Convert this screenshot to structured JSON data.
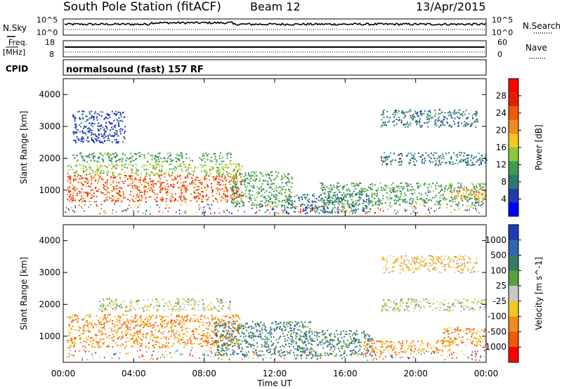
{
  "header": {
    "station": "South Pole Station (fitACF)",
    "beam": "Beam 12",
    "date": "13/Apr/2015"
  },
  "top_panels": {
    "nsky": {
      "label": "N.Sky",
      "tick_top": "10^5",
      "tick_bottom": "10^0"
    },
    "nsearch": {
      "label": "N.Search",
      "tick_top": "10^5",
      "tick_bottom": "10^0"
    },
    "freq": {
      "label_top": "Freq.",
      "label_bottom": "[MHz]",
      "tick_top": "18",
      "tick_bottom": "8"
    },
    "nave": {
      "label": "Nave",
      "tick_top": "60",
      "tick_bottom": "0"
    },
    "cpid": {
      "label": "CPID",
      "value": "normalsound (fast) 157 RF"
    }
  },
  "colors": {
    "power": [
      "#0000ff",
      "#1e3ca8",
      "#2a7a6e",
      "#3c9a50",
      "#8ac83c",
      "#f0c81e",
      "#f08c1e",
      "#f05a0a",
      "#e61e00",
      "#ff0000"
    ],
    "velocity": [
      "#1e3cb4",
      "#3264b4",
      "#3a7a64",
      "#5aa03c",
      "#c8c8c8",
      "#f0c81e",
      "#f08c1e",
      "#f05a0a",
      "#ff0000"
    ]
  },
  "chart_data": [
    {
      "type": "heatmap",
      "name": "power",
      "xlabel": "Time UT",
      "ylabel": "Slant Range [km]",
      "xlim": [
        "00:00",
        "00:00"
      ],
      "ylim": [
        180,
        4500
      ],
      "x_ticks": [
        "00:00",
        "04:00",
        "08:00",
        "12:00",
        "16:00",
        "20:00",
        "00:00"
      ],
      "y_ticks": [
        1000,
        2000,
        3000,
        4000
      ],
      "colorbar": {
        "label": "Power [dB]",
        "ticks": [
          4,
          8,
          12,
          16,
          20,
          24,
          28
        ],
        "range": [
          0,
          32
        ]
      },
      "bands": [
        {
          "t0": 0.2,
          "t1": 10.2,
          "r0": 650,
          "r1": 1500,
          "value": 25
        },
        {
          "t0": 0.2,
          "t1": 10.2,
          "r0": 1500,
          "r1": 1850,
          "value": 14
        },
        {
          "t0": 0.5,
          "t1": 9.5,
          "r0": 1900,
          "r1": 2200,
          "value": 10
        },
        {
          "t0": 9.5,
          "t1": 13.0,
          "r0": 500,
          "r1": 1600,
          "value": 12
        },
        {
          "t0": 12.5,
          "t1": 17.5,
          "r0": 300,
          "r1": 900,
          "value": 9
        },
        {
          "t0": 14.5,
          "t1": 24.0,
          "r0": 550,
          "r1": 1250,
          "value": 10
        },
        {
          "t0": 22.0,
          "t1": 24.0,
          "r0": 700,
          "r1": 1100,
          "value": 20
        },
        {
          "t0": 18.0,
          "t1": 24.0,
          "r0": 1800,
          "r1": 2200,
          "value": 9
        },
        {
          "t0": 18.0,
          "t1": 23.5,
          "r0": 3000,
          "r1": 3550,
          "value": 7
        },
        {
          "t0": 0.5,
          "t1": 3.5,
          "r0": 2500,
          "r1": 3500,
          "value": 6
        }
      ]
    },
    {
      "type": "heatmap",
      "name": "velocity",
      "xlabel": "Time UT",
      "ylabel": "Slant Range [km]",
      "xlim": [
        "00:00",
        "00:00"
      ],
      "ylim": [
        180,
        4500
      ],
      "x_ticks": [
        "00:00",
        "04:00",
        "08:00",
        "12:00",
        "16:00",
        "20:00",
        "00:00"
      ],
      "y_ticks": [
        1000,
        2000,
        3000,
        4000
      ],
      "colorbar": {
        "label": "Velocity [m s^-1]",
        "ticks": [
          "1000",
          "500",
          "100",
          "25",
          "-25",
          "-100",
          "-500",
          "-1000"
        ]
      },
      "bands": [
        {
          "t0": 0.2,
          "t1": 10.0,
          "r0": 650,
          "r1": 1700,
          "value": -300
        },
        {
          "t0": 2.0,
          "t1": 9.5,
          "r0": 1800,
          "r1": 2200,
          "value": 0
        },
        {
          "t0": 8.5,
          "t1": 14.0,
          "r0": 400,
          "r1": 1500,
          "value": 200
        },
        {
          "t0": 13.5,
          "t1": 17.5,
          "r0": 400,
          "r1": 1200,
          "value": 150
        },
        {
          "t0": 17.0,
          "t1": 22.0,
          "r0": 500,
          "r1": 900,
          "value": -150
        },
        {
          "t0": 21.5,
          "t1": 24.0,
          "r0": 700,
          "r1": 1300,
          "value": -300
        },
        {
          "t0": 18.0,
          "t1": 24.0,
          "r0": 1800,
          "r1": 2200,
          "value": 0
        },
        {
          "t0": 18.0,
          "t1": 23.5,
          "r0": 3000,
          "r1": 3550,
          "value": -50
        }
      ]
    }
  ]
}
